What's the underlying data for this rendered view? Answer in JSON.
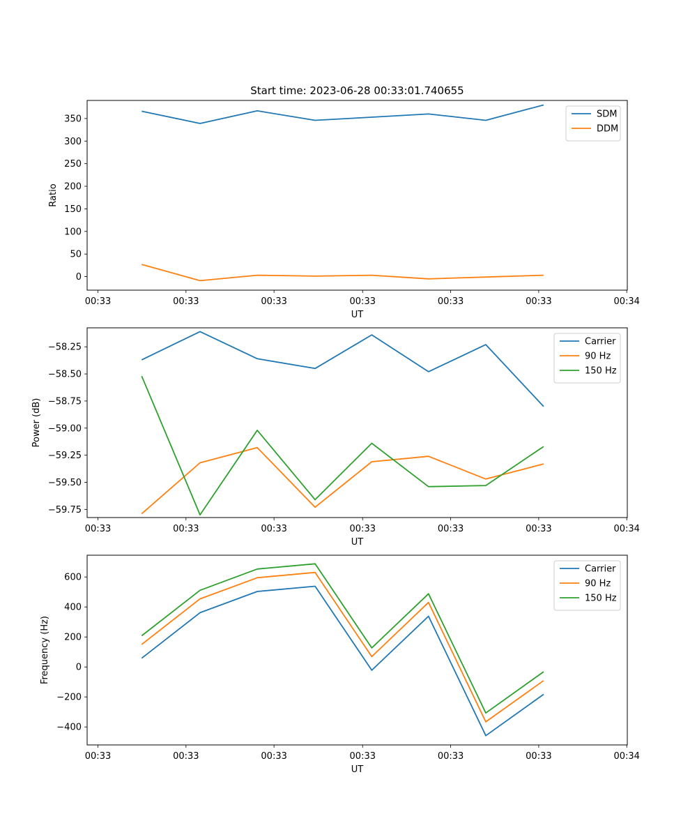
{
  "chart_data": [
    {
      "type": "line",
      "title": "Start time: 2023-06-28 00:33:01.740655",
      "xlabel": "UT",
      "ylabel": "Ratio",
      "x_tick_labels": [
        "00:33",
        "00:33",
        "00:33",
        "00:33",
        "00:33",
        "00:33",
        "00:34"
      ],
      "y_ticks": [
        0,
        50,
        100,
        150,
        200,
        250,
        300,
        350
      ],
      "ylim": [
        -30,
        390
      ],
      "legend": "upper right",
      "series": [
        {
          "name": "SDM",
          "color": "#1f77b4",
          "values": [
            366,
            339,
            367,
            346,
            353,
            360,
            346,
            380
          ]
        },
        {
          "name": "DDM",
          "color": "#ff7f0e",
          "values": [
            27,
            -9,
            3,
            1,
            3,
            -5,
            -1,
            3
          ]
        }
      ]
    },
    {
      "type": "line",
      "title": "",
      "xlabel": "UT",
      "ylabel": "Power (dB)",
      "x_tick_labels": [
        "00:33",
        "00:33",
        "00:33",
        "00:33",
        "00:33",
        "00:33",
        "00:34"
      ],
      "y_ticks": [
        -59.75,
        -59.5,
        -59.25,
        -59.0,
        -58.75,
        -58.5,
        -58.25
      ],
      "y_tick_labels": [
        "−59.75",
        "−59.50",
        "−59.25",
        "−59.00",
        "−58.75",
        "−58.50",
        "−58.25"
      ],
      "ylim": [
        -59.825,
        -58.075
      ],
      "legend": "upper right",
      "series": [
        {
          "name": "Carrier",
          "color": "#1f77b4",
          "values": [
            -58.37,
            -58.11,
            -58.36,
            -58.45,
            -58.14,
            -58.48,
            -58.23,
            -58.8
          ]
        },
        {
          "name": "90 Hz",
          "color": "#ff7f0e",
          "values": [
            -59.79,
            -59.32,
            -59.18,
            -59.73,
            -59.31,
            -59.26,
            -59.47,
            -59.33
          ]
        },
        {
          "name": "150 Hz",
          "color": "#2ca02c",
          "values": [
            -58.52,
            -59.8,
            -59.02,
            -59.66,
            -59.14,
            -59.54,
            -59.53,
            -59.17
          ]
        }
      ]
    },
    {
      "type": "line",
      "title": "",
      "xlabel": "UT",
      "ylabel": "Frequency (Hz)",
      "x_tick_labels": [
        "00:33",
        "00:33",
        "00:33",
        "00:33",
        "00:33",
        "00:33",
        "00:34"
      ],
      "y_ticks": [
        -400,
        -200,
        0,
        200,
        400,
        600
      ],
      "y_tick_labels": [
        "−400",
        "−200",
        "0",
        "200",
        "400",
        "600"
      ],
      "ylim": [
        -520,
        745
      ],
      "legend": "upper right",
      "series": [
        {
          "name": "Carrier",
          "color": "#1f77b4",
          "values": [
            58,
            362,
            503,
            538,
            -22,
            338,
            -458,
            -183
          ]
        },
        {
          "name": "90 Hz",
          "color": "#ff7f0e",
          "values": [
            150,
            454,
            595,
            630,
            69,
            430,
            -366,
            -91
          ]
        },
        {
          "name": "150 Hz",
          "color": "#2ca02c",
          "values": [
            208,
            511,
            653,
            688,
            127,
            488,
            -307,
            -32
          ]
        }
      ]
    }
  ]
}
